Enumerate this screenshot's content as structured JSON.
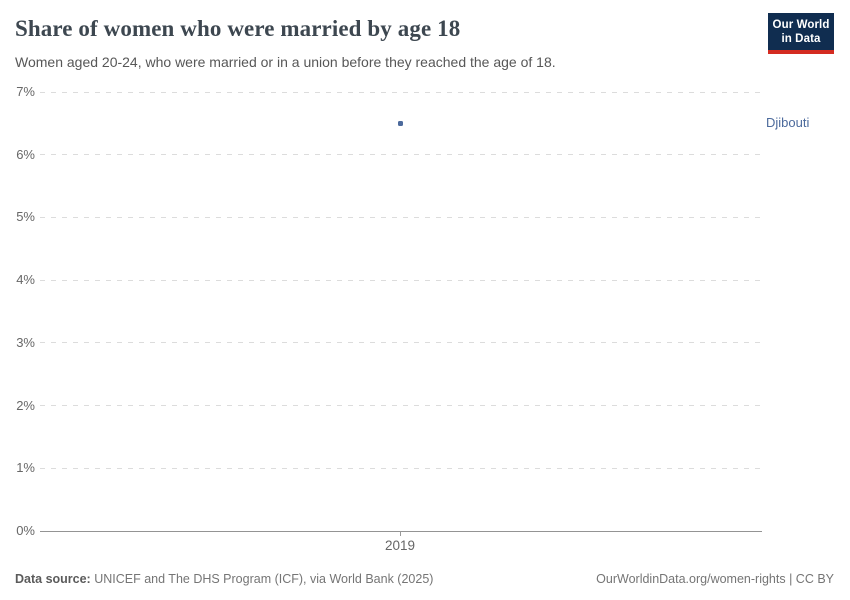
{
  "header": {
    "title": "Share of women who were married by age 18",
    "subtitle": "Women aged 20-24, who were married or in a union before they reached the age of 18."
  },
  "logo": {
    "line1": "Our World",
    "line2": "in Data",
    "background_color": "#102d50",
    "stripe_color": "#d42b21"
  },
  "chart_data": {
    "type": "scatter",
    "title": "Share of women who were married by age 18",
    "xlabel": "",
    "ylabel": "",
    "ylim": [
      0,
      7
    ],
    "yticks": [
      0,
      1,
      2,
      3,
      4,
      5,
      6,
      7
    ],
    "ytick_suffix": "%",
    "xticks": [
      2019
    ],
    "grid": "horizontal-dashed",
    "legend_position": "right-of-plot",
    "series": [
      {
        "name": "Djibouti",
        "color": "#4c6a9c",
        "points": [
          {
            "x": 2019,
            "y": 6.5
          }
        ]
      }
    ]
  },
  "footer": {
    "source_label": "Data source:",
    "source_text": " UNICEF and The DHS Program (ICF), via World Bank (2025)",
    "rights_text": "OurWorldinData.org/women-rights | CC BY"
  }
}
